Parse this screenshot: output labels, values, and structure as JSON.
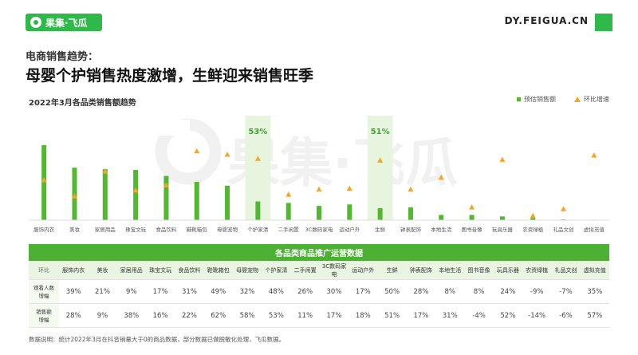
{
  "header": {
    "logo_text": "果集·飞瓜",
    "site": "DY.FEIGUA.CN",
    "section": "电商销售趋势：",
    "headline": "母婴个护销售热度激增，生鲜迎来销售旺季",
    "watermark": "果集·飞瓜",
    "brand_color": "#2fb94a"
  },
  "chart_data": {
    "type": "bar",
    "title": "2022年3月各品类销售额趋势",
    "categories": [
      "服饰内衣",
      "美妆",
      "家居用品",
      "珠宝文玩",
      "食品饮料",
      "鞋靴箱包",
      "母婴宠物",
      "个护家清",
      "二手闲置",
      "3C数码家电",
      "运动户外",
      "生鲜",
      "钟表配饰",
      "本地生活",
      "图书音像",
      "玩具乐器",
      "农资绿植",
      "礼品文创",
      "虚拟充值"
    ],
    "series": [
      {
        "name": "预估销售额",
        "kind": "bar",
        "color": "#52b830",
        "values": [
          100,
          70,
          68,
          67,
          59,
          51,
          46,
          25,
          23,
          19,
          21,
          16,
          17,
          7,
          7,
          5,
          3,
          1,
          0.6
        ]
      },
      {
        "name": "环比增速",
        "kind": "marker",
        "color": "#f5a623",
        "unit": "%",
        "values": [
          28,
          9,
          38,
          16,
          22,
          62,
          58,
          53,
          11,
          17,
          18,
          51,
          17,
          31,
          -4,
          52,
          -14,
          -6,
          57
        ]
      }
    ],
    "highlights": [
      {
        "category": "个护家清",
        "label": "53%"
      },
      {
        "category": "生鲜",
        "label": "51%"
      }
    ],
    "bar_axis_max": 100,
    "growth_axis_range": [
      -40,
      80
    ]
  },
  "legend": {
    "bar_label": "预估销售额",
    "growth_label": "环比增速"
  },
  "table": {
    "title": "各品类商品推广运营数据",
    "corner": "环比",
    "columns": [
      "服饰内衣",
      "美妆",
      "家居用品",
      "珠宝文玩",
      "食品饮料",
      "鞋靴箱包",
      "母婴宠物",
      "个护家清",
      "二手闲置",
      "3C数码家电",
      "运动户外",
      "生鲜",
      "钟表配饰",
      "本地生活",
      "图书音像",
      "玩具乐器",
      "农资绿植",
      "礼品文创",
      "虚拟充值"
    ],
    "rows": [
      {
        "label_line1": "观看人数",
        "label_line2": "增幅",
        "cells": [
          "39%",
          "21%",
          "9%",
          "17%",
          "31%",
          "49%",
          "32%",
          "48%",
          "26%",
          "30%",
          "17%",
          "50%",
          "28%",
          "8%",
          "8%",
          "24%",
          "-9%",
          "-7%",
          "35%"
        ]
      },
      {
        "label_line1": "销售额",
        "label_line2": "增幅",
        "cells": [
          "28%",
          "9%",
          "38%",
          "16%",
          "22%",
          "62%",
          "58%",
          "53%",
          "11%",
          "17%",
          "18%",
          "51%",
          "17%",
          "31%",
          "-4%",
          "52%",
          "-14%",
          "-6%",
          "57%"
        ]
      }
    ]
  },
  "footnote": "数据说明：统计2022年3月在抖音销量大于0的商品数据，部分数据已做脱敏化处理，飞瓜数据。"
}
